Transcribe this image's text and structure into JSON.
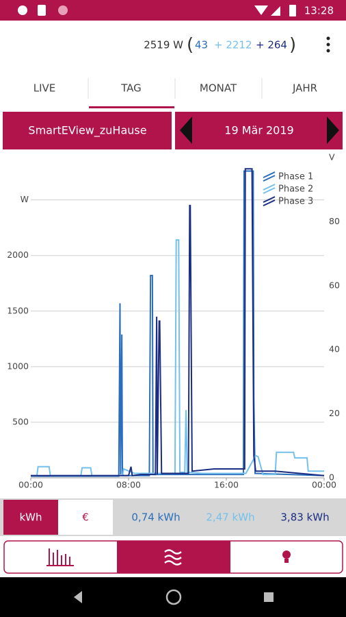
{
  "status": {
    "time": "13:28"
  },
  "header": {
    "total": "2519 W",
    "open": "(",
    "p1": "43",
    "p2": "+ 2212",
    "p3": "+ 264",
    "close": ")"
  },
  "tabs": [
    "LIVE",
    "TAG",
    "MONAT",
    "JAHR"
  ],
  "selector": {
    "device": "SmartEView_zuHause",
    "date": "19 Mär 2019"
  },
  "chart_data": {
    "type": "line",
    "y2label": "V",
    "xlim": [
      0,
      24
    ],
    "xticks": [
      {
        "value": 0,
        "label": "00:00"
      },
      {
        "value": 8,
        "label": "08:00"
      },
      {
        "value": 16,
        "label": "16:00"
      },
      {
        "value": 24,
        "label": "00:00"
      }
    ],
    "ylim": [
      0,
      2880
    ],
    "yticks": [
      500,
      1000,
      1500,
      2000,
      {
        "value": 2500,
        "label": "W"
      }
    ],
    "y2lim": [
      0,
      100
    ],
    "y2ticks": [
      0,
      20,
      40,
      60,
      80
    ],
    "grid": true,
    "legend": "top-right",
    "series": [
      {
        "name": "Phase 1",
        "color": "#2a6ebb",
        "x": [
          0,
          7.2,
          7.3,
          7.35,
          7.45,
          7.5,
          7.6,
          9.7,
          9.8,
          9.95,
          10,
          17.4,
          17.45,
          18.2,
          18.25,
          18.35,
          24
        ],
        "values": [
          15,
          15,
          1570,
          30,
          1290,
          30,
          20,
          20,
          1820,
          1820,
          30,
          30,
          2760,
          2760,
          700,
          40,
          20
        ]
      },
      {
        "name": "Phase 2",
        "color": "#74c0ec",
        "x": [
          0,
          0.5,
          0.6,
          1.5,
          1.6,
          4.1,
          4.2,
          4.9,
          5,
          7.5,
          7.6,
          8.5,
          11.8,
          11.9,
          12.1,
          12.2,
          12.6,
          12.7,
          12.8,
          14,
          17.6,
          18.4,
          18.6,
          19,
          20,
          20.1,
          21.5,
          21.6,
          22.6,
          22.7,
          24
        ],
        "values": [
          20,
          20,
          100,
          100,
          20,
          20,
          90,
          90,
          20,
          20,
          80,
          40,
          40,
          2140,
          2140,
          50,
          50,
          610,
          50,
          40,
          40,
          200,
          190,
          30,
          30,
          230,
          230,
          180,
          180,
          60,
          60
        ]
      },
      {
        "name": "Phase 3",
        "color": "#1b2d82",
        "x": [
          0,
          8,
          8.2,
          8.3,
          9,
          10.2,
          10.3,
          10.35,
          10.5,
          10.55,
          10.7,
          12.9,
          13,
          13.05,
          13.2,
          15,
          17.5,
          17.55,
          18.1,
          18.15,
          18.25,
          18.4,
          20,
          24
        ],
        "values": [
          20,
          20,
          100,
          20,
          30,
          30,
          1450,
          30,
          1410,
          1410,
          40,
          40,
          2450,
          2450,
          60,
          80,
          80,
          2780,
          2780,
          1880,
          200,
          60,
          60,
          20
        ]
      }
    ]
  },
  "units": {
    "kwh": "kWh",
    "eur": "€"
  },
  "totals": [
    "0,74 kWh",
    "2,47 kWh",
    "3,83 kWh"
  ]
}
